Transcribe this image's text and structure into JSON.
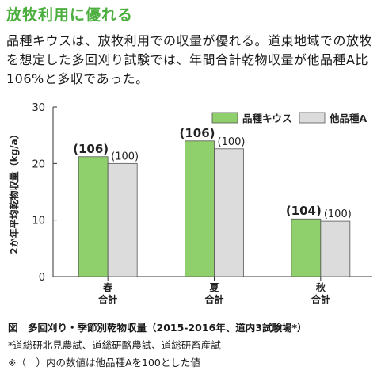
{
  "header": {
    "title": "放牧利用に優れる",
    "intro": "品種キウスは、放牧利用での収量が優れる。道東地域での放牧を想定した多回刈り試験では、年間合計乾物収量が他品種A比106%と多収であった。"
  },
  "chart_data": {
    "type": "bar",
    "categories": [
      "春\n合計",
      "夏\n合計",
      "秋\n合計"
    ],
    "series": [
      {
        "name": "品種キウス",
        "values": [
          21.2,
          24.0,
          10.2
        ],
        "labels": [
          "(106)",
          "(106)",
          "(104)"
        ],
        "color": "#8fcf6c"
      },
      {
        "name": "他品種A",
        "values": [
          20.0,
          22.6,
          9.8
        ],
        "labels": [
          "(100)",
          "(100)",
          "(100)"
        ],
        "color": "#dcdcdc"
      }
    ],
    "ylabel": "2か年平均乾物収量（kg/a）",
    "ylim": [
      0,
      30
    ],
    "yticks": [
      "0",
      "10",
      "20",
      "30"
    ],
    "legend": "top-right",
    "grid": false
  },
  "footer": {
    "caption": "図　多回刈り・季節別乾物収量（2015-2016年、道内3試験場*）",
    "note1": "*道総研北見農試、道総研酪農試、道総研畜産試",
    "note2": "※（　）内の数値は他品種Aを100とした値"
  }
}
